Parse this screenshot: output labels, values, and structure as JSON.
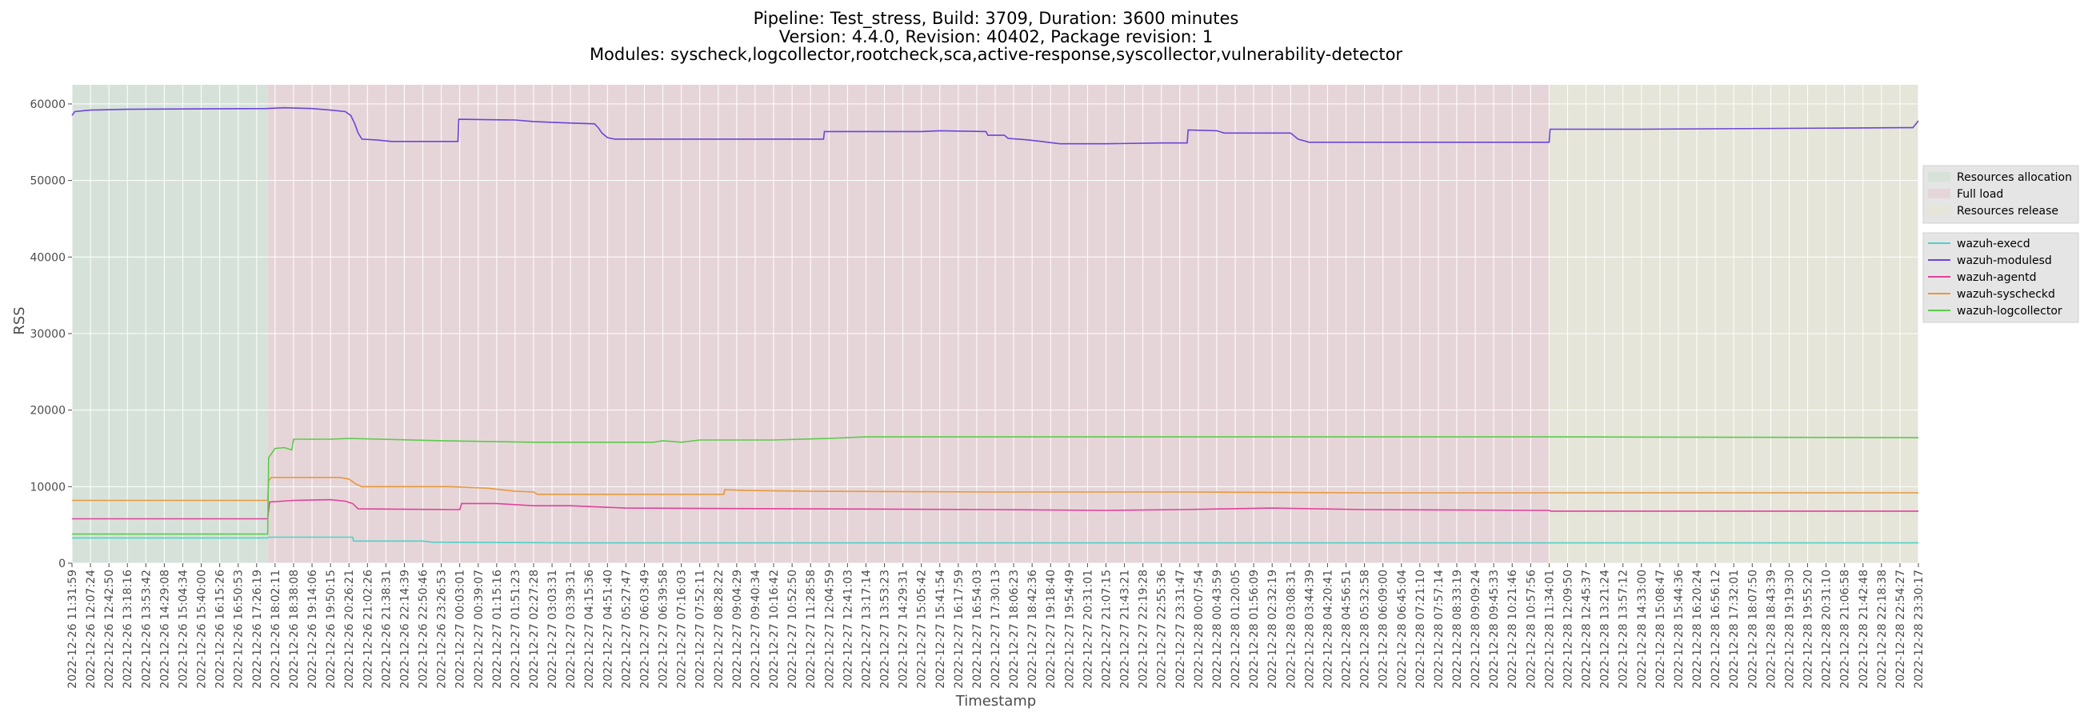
{
  "chart_data": {
    "type": "line",
    "title_lines": [
      "Pipeline: Test_stress, Build: 3709, Duration: 3600 minutes",
      "Version: 4.4.0, Revision: 40402, Package revision: 1",
      "Modules: syscheck,logcollector,rootcheck,sca,active-response,syscollector,vulnerability-detector"
    ],
    "xlabel": "Timestamp",
    "ylabel": "RSS",
    "ylim": [
      0,
      62500
    ],
    "yticks": [
      0,
      10000,
      20000,
      30000,
      40000,
      50000,
      60000
    ],
    "grid": true,
    "x_tick_labels": [
      "2022-12-26 11:31:59",
      "2022-12-26 12:07:24",
      "2022-12-26 12:42:50",
      "2022-12-26 13:18:16",
      "2022-12-26 13:53:42",
      "2022-12-26 14:29:08",
      "2022-12-26 15:04:34",
      "2022-12-26 15:40:00",
      "2022-12-26 16:15:26",
      "2022-12-26 16:50:53",
      "2022-12-26 17:26:19",
      "2022-12-26 18:02:11",
      "2022-12-26 18:38:08",
      "2022-12-26 19:14:06",
      "2022-12-26 19:50:15",
      "2022-12-26 20:26:21",
      "2022-12-26 21:02:26",
      "2022-12-26 21:38:31",
      "2022-12-26 22:14:39",
      "2022-12-26 22:50:46",
      "2022-12-26 23:26:53",
      "2022-12-27 00:03:01",
      "2022-12-27 00:39:07",
      "2022-12-27 01:15:16",
      "2022-12-27 01:51:23",
      "2022-12-27 02:27:28",
      "2022-12-27 03:03:31",
      "2022-12-27 03:39:31",
      "2022-12-27 04:15:36",
      "2022-12-27 04:51:40",
      "2022-12-27 05:27:47",
      "2022-12-27 06:03:49",
      "2022-12-27 06:39:58",
      "2022-12-27 07:16:03",
      "2022-12-27 07:52:11",
      "2022-12-27 08:28:22",
      "2022-12-27 09:04:29",
      "2022-12-27 09:40:34",
      "2022-12-27 10:16:42",
      "2022-12-27 10:52:50",
      "2022-12-27 11:28:58",
      "2022-12-27 12:04:59",
      "2022-12-27 12:41:03",
      "2022-12-27 13:17:14",
      "2022-12-27 13:53:23",
      "2022-12-27 14:29:31",
      "2022-12-27 15:05:42",
      "2022-12-27 15:41:54",
      "2022-12-27 16:17:59",
      "2022-12-27 16:54:03",
      "2022-12-27 17:30:13",
      "2022-12-27 18:06:23",
      "2022-12-27 18:42:36",
      "2022-12-27 19:18:40",
      "2022-12-27 19:54:49",
      "2022-12-27 20:31:01",
      "2022-12-27 21:07:15",
      "2022-12-27 21:43:21",
      "2022-12-27 22:19:28",
      "2022-12-27 22:55:36",
      "2022-12-27 23:31:47",
      "2022-12-28 00:07:54",
      "2022-12-28 00:43:59",
      "2022-12-28 01:20:05",
      "2022-12-28 01:56:09",
      "2022-12-28 02:32:19",
      "2022-12-28 03:08:31",
      "2022-12-28 03:44:39",
      "2022-12-28 04:20:41",
      "2022-12-28 04:56:51",
      "2022-12-28 05:32:58",
      "2022-12-28 06:09:00",
      "2022-12-28 06:45:04",
      "2022-12-28 07:21:10",
      "2022-12-28 07:57:14",
      "2022-12-28 08:33:19",
      "2022-12-28 09:09:24",
      "2022-12-28 09:45:33",
      "2022-12-28 10:21:46",
      "2022-12-28 10:57:56",
      "2022-12-28 11:34:01",
      "2022-12-28 12:09:50",
      "2022-12-28 12:45:37",
      "2022-12-28 13:21:24",
      "2022-12-28 13:57:12",
      "2022-12-28 14:33:00",
      "2022-12-28 15:08:47",
      "2022-12-28 15:44:36",
      "2022-12-28 16:20:24",
      "2022-12-28 16:56:12",
      "2022-12-28 17:32:01",
      "2022-12-28 18:07:50",
      "2022-12-28 18:43:39",
      "2022-12-28 19:19:30",
      "2022-12-28 19:55:20",
      "2022-12-28 20:31:10",
      "2022-12-28 21:06:58",
      "2022-12-28 21:42:48",
      "2022-12-28 22:18:38",
      "2022-12-28 22:54:27",
      "2022-12-28 23:30:17"
    ],
    "phases": [
      {
        "name": "Resources allocation",
        "from_tick": 0,
        "to_tick": 10.6,
        "color": "#d6e2d9"
      },
      {
        "name": "Full load",
        "from_tick": 10.6,
        "to_tick": 80,
        "color": "#e6d5d8"
      },
      {
        "name": "Resources release",
        "from_tick": 80,
        "to_tick": 100,
        "color": "#e5e5d9"
      }
    ],
    "series": [
      {
        "name": "wazuh-execd",
        "color": "#4fd1c5",
        "points": [
          [
            0,
            3300
          ],
          [
            10.6,
            3300
          ],
          [
            10.65,
            3400
          ],
          [
            15.2,
            3400
          ],
          [
            15.25,
            2900
          ],
          [
            19,
            2900
          ],
          [
            19.5,
            2750
          ],
          [
            24,
            2700
          ],
          [
            27,
            2650
          ],
          [
            100,
            2650
          ]
        ]
      },
      {
        "name": "wazuh-modulesd",
        "color": "#6a45d8",
        "points": [
          [
            0,
            58500
          ],
          [
            0.15,
            59000
          ],
          [
            1,
            59200
          ],
          [
            3,
            59300
          ],
          [
            10.5,
            59400
          ],
          [
            11.5,
            59500
          ],
          [
            13,
            59400
          ],
          [
            14,
            59200
          ],
          [
            14.8,
            59000
          ],
          [
            15.1,
            58500
          ],
          [
            15.3,
            57500
          ],
          [
            15.5,
            56200
          ],
          [
            15.7,
            55400
          ],
          [
            16.5,
            55300
          ],
          [
            17.3,
            55100
          ],
          [
            20.9,
            55100
          ],
          [
            20.95,
            58000
          ],
          [
            24,
            57900
          ],
          [
            25,
            57700
          ],
          [
            26,
            57600
          ],
          [
            27,
            57500
          ],
          [
            28.3,
            57400
          ],
          [
            28.5,
            56900
          ],
          [
            28.7,
            56200
          ],
          [
            29,
            55600
          ],
          [
            29.4,
            55400
          ],
          [
            40.7,
            55400
          ],
          [
            40.75,
            56400
          ],
          [
            46,
            56400
          ],
          [
            47,
            56500
          ],
          [
            49.5,
            56400
          ],
          [
            49.6,
            55900
          ],
          [
            50.5,
            55900
          ],
          [
            50.7,
            55500
          ],
          [
            51.8,
            55300
          ],
          [
            52.5,
            55100
          ],
          [
            53.5,
            54800
          ],
          [
            56,
            54800
          ],
          [
            59,
            54900
          ],
          [
            60.4,
            54900
          ],
          [
            60.45,
            56600
          ],
          [
            62,
            56500
          ],
          [
            62.4,
            56200
          ],
          [
            66,
            56200
          ],
          [
            66.4,
            55400
          ],
          [
            67,
            55000
          ],
          [
            80,
            55000
          ],
          [
            80.05,
            56700
          ],
          [
            85,
            56700
          ],
          [
            99.2,
            56900
          ],
          [
            99.7,
            56900
          ],
          [
            100,
            57800
          ]
        ]
      },
      {
        "name": "wazuh-agentd",
        "color": "#e0419a",
        "points": [
          [
            0,
            5800
          ],
          [
            10.6,
            5800
          ],
          [
            10.7,
            8000
          ],
          [
            12,
            8200
          ],
          [
            14,
            8300
          ],
          [
            14.8,
            8100
          ],
          [
            15.2,
            7800
          ],
          [
            15.5,
            7100
          ],
          [
            21,
            7000
          ],
          [
            21.1,
            7800
          ],
          [
            23,
            7800
          ],
          [
            25,
            7500
          ],
          [
            27,
            7500
          ],
          [
            30,
            7200
          ],
          [
            40,
            7100
          ],
          [
            50,
            7000
          ],
          [
            56,
            6900
          ],
          [
            60,
            7000
          ],
          [
            65,
            7200
          ],
          [
            70,
            7000
          ],
          [
            80,
            6900
          ],
          [
            80.1,
            6800
          ],
          [
            100,
            6800
          ]
        ]
      },
      {
        "name": "wazuh-syscheckd",
        "color": "#e69a3c",
        "points": [
          [
            0,
            8200
          ],
          [
            10.6,
            8200
          ],
          [
            10.65,
            10800
          ],
          [
            10.8,
            11200
          ],
          [
            14.5,
            11200
          ],
          [
            15,
            11000
          ],
          [
            15.4,
            10300
          ],
          [
            15.7,
            10000
          ],
          [
            20.5,
            10000
          ],
          [
            21.5,
            9900
          ],
          [
            22.5,
            9800
          ],
          [
            24,
            9400
          ],
          [
            25,
            9300
          ],
          [
            25.2,
            9000
          ],
          [
            35.3,
            9000
          ],
          [
            35.35,
            9600
          ],
          [
            36.5,
            9500
          ],
          [
            40,
            9400
          ],
          [
            50,
            9300
          ],
          [
            60,
            9300
          ],
          [
            70,
            9200
          ],
          [
            100,
            9200
          ]
        ]
      },
      {
        "name": "wazuh-logcollector",
        "color": "#5acb4a",
        "points": [
          [
            0,
            3800
          ],
          [
            10.6,
            3800
          ],
          [
            10.65,
            13800
          ],
          [
            11,
            15000
          ],
          [
            11.5,
            15100
          ],
          [
            11.9,
            14800
          ],
          [
            12,
            16200
          ],
          [
            14,
            16200
          ],
          [
            15,
            16300
          ],
          [
            20,
            16000
          ],
          [
            25,
            15800
          ],
          [
            30,
            15800
          ],
          [
            31.5,
            15800
          ],
          [
            32,
            16000
          ],
          [
            33,
            15800
          ],
          [
            34,
            16100
          ],
          [
            38,
            16100
          ],
          [
            41,
            16300
          ],
          [
            43,
            16500
          ],
          [
            60,
            16500
          ],
          [
            80,
            16500
          ],
          [
            100,
            16400
          ]
        ]
      }
    ],
    "legend_phases": [
      "Resources allocation",
      "Full load",
      "Resources release"
    ],
    "legend_series": [
      "wazuh-execd",
      "wazuh-modulesd",
      "wazuh-agentd",
      "wazuh-syscheckd",
      "wazuh-logcollector"
    ]
  }
}
